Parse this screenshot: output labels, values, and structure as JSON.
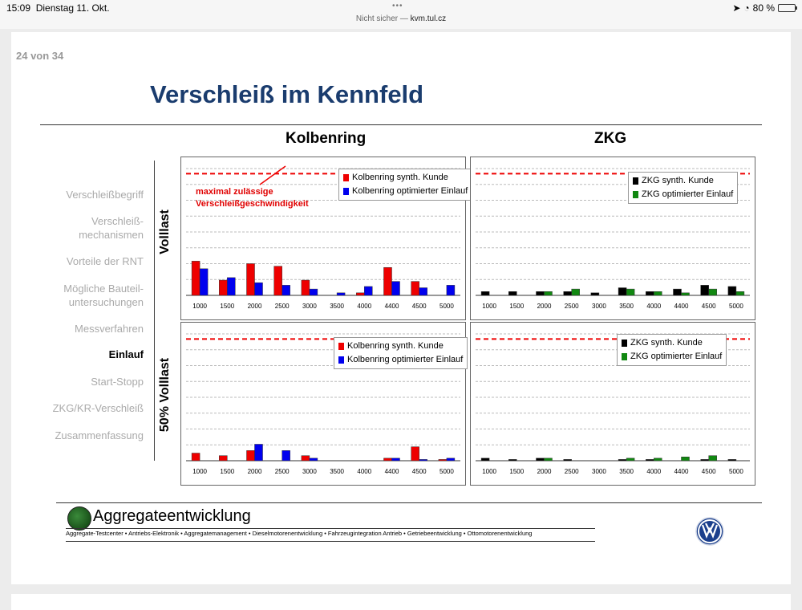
{
  "statusbar": {
    "time": "15:09",
    "date": "Dienstag 11. Okt.",
    "url_prefix": "Nicht sicher —",
    "url": "kvm.tul.cz",
    "battery": "80 %",
    "battery_level": 0.8
  },
  "slide": {
    "page": "24 von 34",
    "title": "Verschleiß im Kennfeld",
    "nav": [
      {
        "label": "Verschleißbegriff",
        "active": false
      },
      {
        "label": "Verschleiß-\nmechanismen",
        "active": false
      },
      {
        "label": "Vorteile der RNT",
        "active": false
      },
      {
        "label": "Mögliche Bauteil-\nuntersuchungen",
        "active": false
      },
      {
        "label": "Messverfahren",
        "active": false
      },
      {
        "label": "Einlauf",
        "active": true
      },
      {
        "label": "Start-Stopp",
        "active": false
      },
      {
        "label": "ZKG/KR-Verschleiß",
        "active": false
      },
      {
        "label": "Zusammenfassung",
        "active": false
      }
    ],
    "col_headers": [
      "Kolbenring",
      "ZKG"
    ],
    "row_labels": [
      "Volllast",
      "50% Volllast"
    ],
    "annotation": "maximal zulässige\nVerschleißgeschwindigkeit",
    "footer": {
      "brand": "Aggregateentwicklung",
      "subbrand": "Aggregate-Testcenter • Antriebs-Elektronik • Aggregatemanagement • Dieselmotorenentwicklung  • Fahrzeugintegration Antrieb • Getriebeentwicklung • Ottomotorenentwicklung"
    }
  },
  "chart_data": [
    {
      "type": "bar",
      "panel": "Kolbenring / Volllast",
      "categories": [
        "1000",
        "1500",
        "2000",
        "2500",
        "3000",
        "3500",
        "4000",
        "4400",
        "4500",
        "5000"
      ],
      "ylim": [
        0,
        100
      ],
      "limit_line": 96,
      "legend_position": "top-right",
      "series": [
        {
          "name": "Kolbenring synth. Kunde",
          "color": "#ee0000",
          "values": [
            27,
            12,
            25,
            23,
            12,
            0,
            2,
            22,
            11,
            0
          ]
        },
        {
          "name": "Kolbenring optimierter Einlauf",
          "color": "#0000ee",
          "values": [
            21,
            14,
            10,
            8,
            5,
            2,
            7,
            11,
            6,
            8
          ]
        }
      ]
    },
    {
      "type": "bar",
      "panel": "ZKG / Volllast",
      "categories": [
        "1000",
        "1500",
        "2000",
        "2500",
        "3000",
        "3500",
        "4000",
        "4400",
        "4500",
        "5000"
      ],
      "ylim": [
        0,
        100
      ],
      "limit_line": 96,
      "legend_position": "top-right",
      "series": [
        {
          "name": "ZKG synth. Kunde",
          "color": "#000000",
          "values": [
            3,
            3,
            3,
            3,
            2,
            6,
            3,
            5,
            8,
            7
          ]
        },
        {
          "name": "ZKG optimierter Einlauf",
          "color": "#118811",
          "values": [
            0,
            0,
            3,
            5,
            0,
            5,
            3,
            2,
            5,
            3
          ]
        }
      ]
    },
    {
      "type": "bar",
      "panel": "Kolbenring / 50% Volllast",
      "categories": [
        "1000",
        "1500",
        "2000",
        "2500",
        "3000",
        "3500",
        "4000",
        "4400",
        "4500",
        "5000"
      ],
      "ylim": [
        0,
        100
      ],
      "limit_line": 96,
      "legend_position": "top-right",
      "series": [
        {
          "name": "Kolbenring synth. Kunde",
          "color": "#ee0000",
          "values": [
            6,
            4,
            8,
            0,
            4,
            0,
            0,
            2,
            11,
            1
          ]
        },
        {
          "name": "Kolbenring optimierter Einlauf",
          "color": "#0000ee",
          "values": [
            0,
            0,
            13,
            8,
            2,
            0,
            0,
            2,
            1,
            2
          ]
        }
      ]
    },
    {
      "type": "bar",
      "panel": "ZKG / 50% Volllast",
      "categories": [
        "1000",
        "1500",
        "2000",
        "2500",
        "3000",
        "3500",
        "4000",
        "4400",
        "4500",
        "5000"
      ],
      "ylim": [
        0,
        100
      ],
      "limit_line": 96,
      "legend_position": "top-right",
      "series": [
        {
          "name": "ZKG synth. Kunde",
          "color": "#000000",
          "values": [
            2,
            1,
            2,
            1,
            0,
            1,
            1,
            0,
            1,
            1
          ]
        },
        {
          "name": "ZKG optimierter Einlauf",
          "color": "#118811",
          "values": [
            0,
            0,
            2,
            0,
            0,
            2,
            2,
            3,
            4,
            0
          ]
        }
      ]
    }
  ]
}
